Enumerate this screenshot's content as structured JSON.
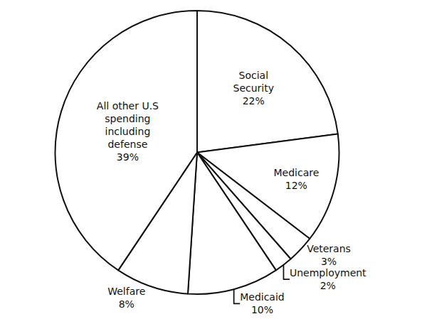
{
  "chart_data": {
    "type": "pie",
    "categories": [
      "Social Security",
      "Medicare",
      "Veterans",
      "Unemployment",
      "Medicaid",
      "Welfare",
      "All other U.S spending including defense"
    ],
    "values": [
      22,
      12,
      3,
      2,
      10,
      8,
      39
    ],
    "value_labels": [
      "22%",
      "12%",
      "3%",
      "2%",
      "10%",
      "8%",
      "39%"
    ],
    "color": "#ffffff",
    "data_labels": true
  }
}
